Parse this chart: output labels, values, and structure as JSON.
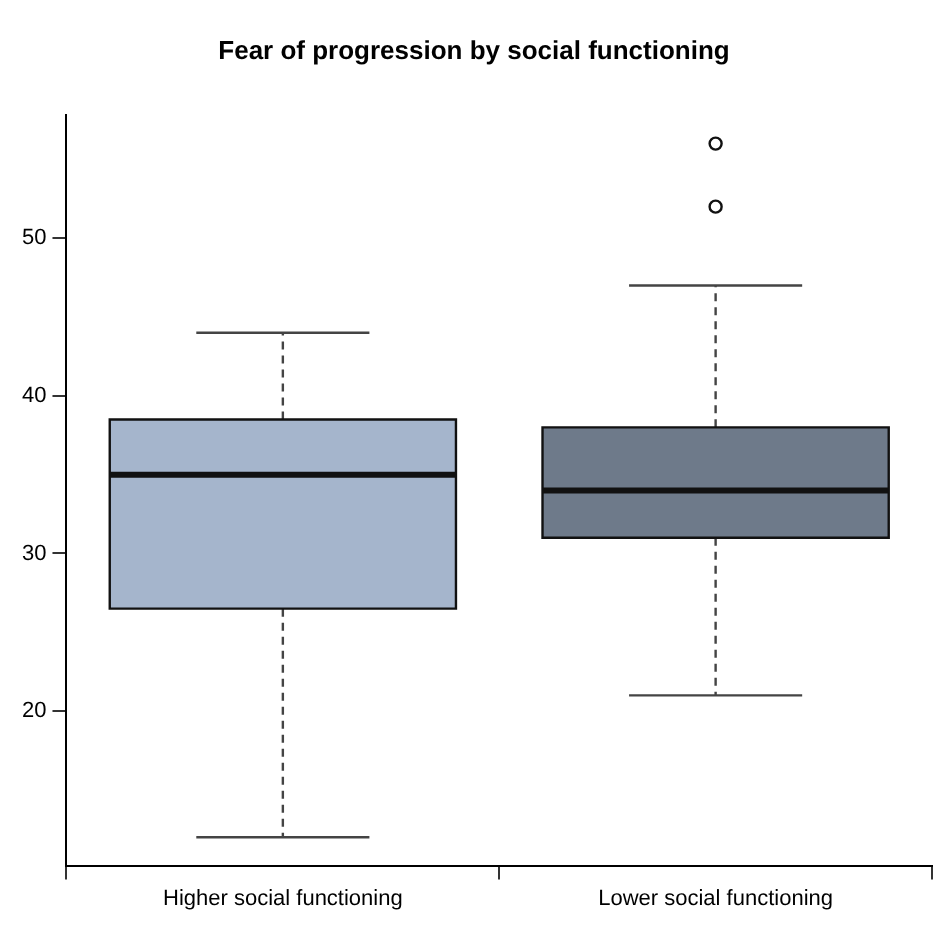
{
  "chart_data": {
    "type": "box",
    "title": "Fear of progression by social functioning",
    "categories": [
      "Higher social functioning",
      "Lower social functioning"
    ],
    "boxes": [
      {
        "low": 12,
        "q1": 26.5,
        "median": 35,
        "q3": 38.5,
        "high": 44
      },
      {
        "low": 21,
        "q1": 31,
        "median": 34,
        "q3": 38,
        "high": 47,
        "outliers": [
          52,
          56
        ]
      }
    ],
    "colors": [
      "#a5b5cc",
      "#6e7a8a"
    ],
    "ylim": [
      10.2,
      57.8
    ],
    "yticks": [
      20,
      30,
      40,
      50
    ],
    "grid": false,
    "legend": false
  }
}
